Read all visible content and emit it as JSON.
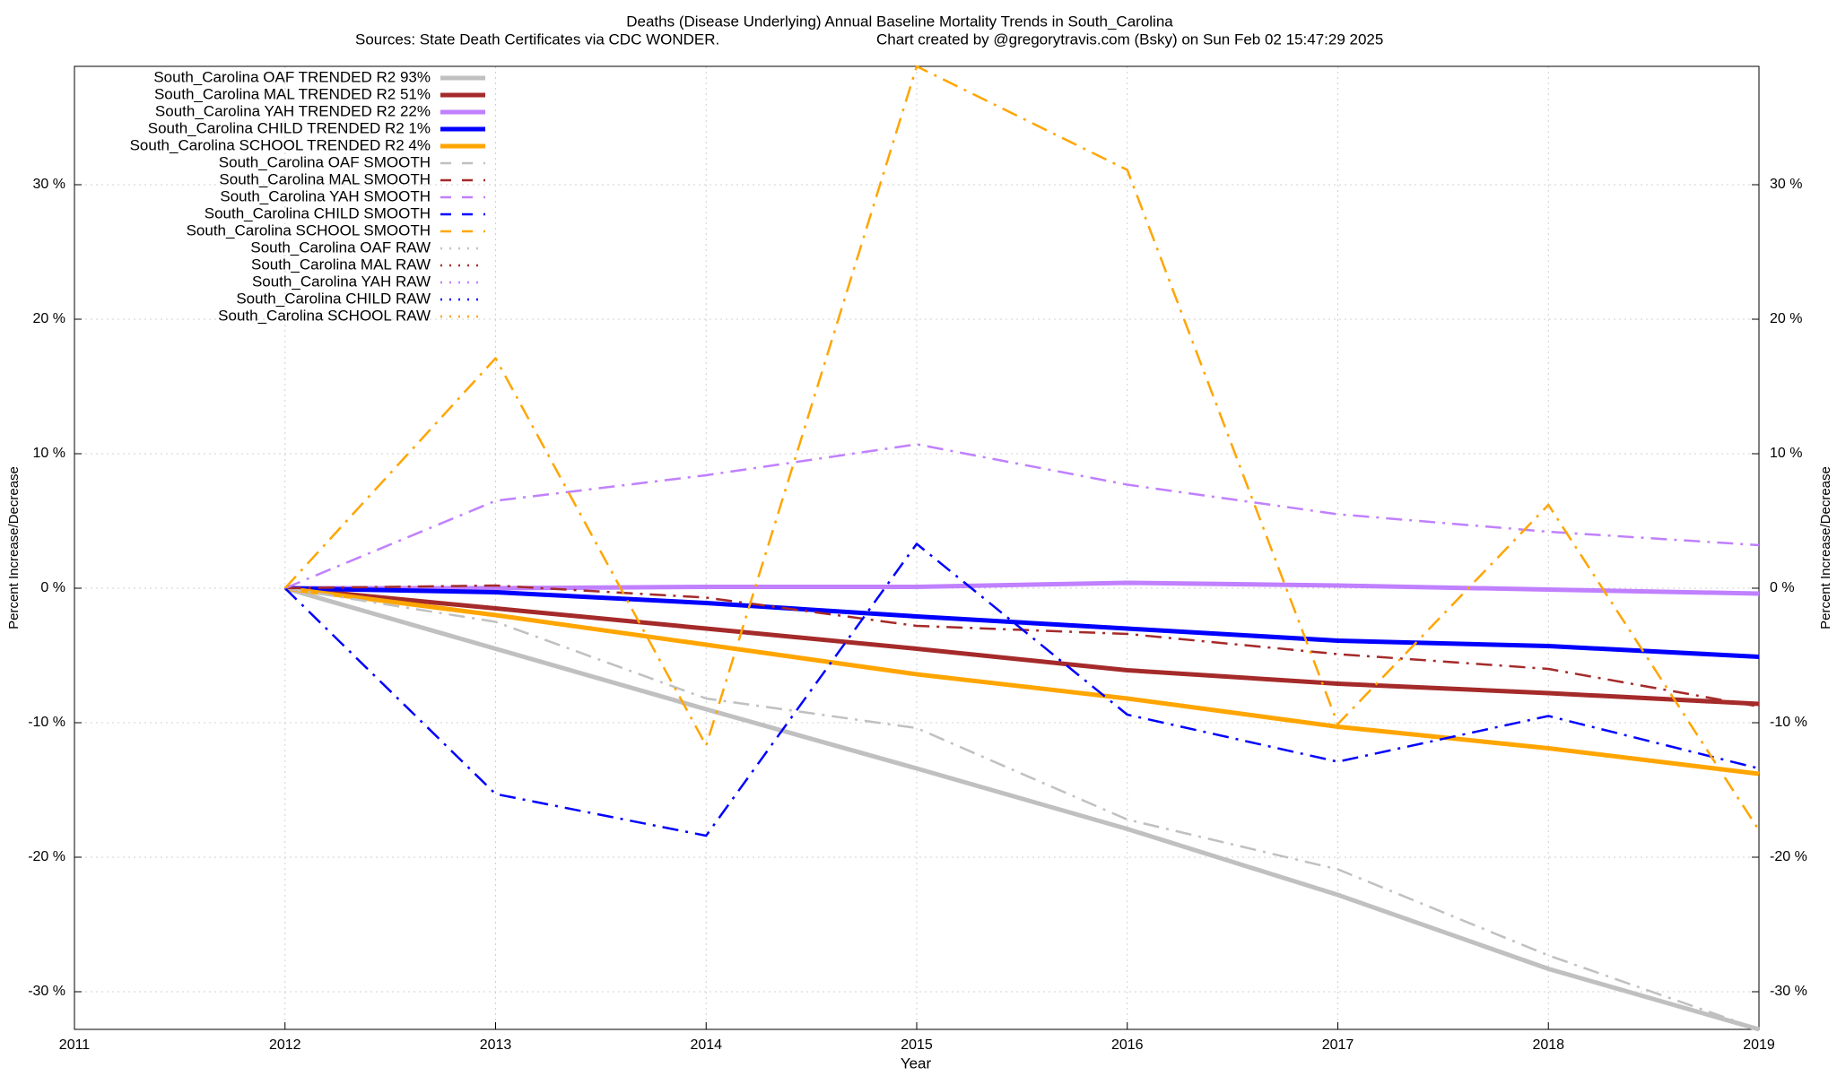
{
  "chart_data": {
    "type": "line",
    "title": "Deaths (Disease Underlying)  Annual Baseline Mortality Trends in South_Carolina",
    "subtitle": "Sources: State Death Certificates via CDC WONDER.",
    "credit": "Chart created by @gregorytravis.com (Bsky) on Sun Feb 02 15:47:29 2025",
    "xlabel": "Year",
    "ylabel": "Percent Increase/Decrease",
    "y2label": "Percent Increase/Decrease",
    "x": [
      2012,
      2013,
      2014,
      2015,
      2016,
      2017,
      2018,
      2019
    ],
    "xlim": [
      2011,
      2019
    ],
    "xticks": [
      2011,
      2012,
      2013,
      2014,
      2015,
      2016,
      2017,
      2018,
      2019
    ],
    "ylim": [
      -32.8,
      38.8
    ],
    "yticks": [
      {
        "value": -30,
        "label": "-30 %"
      },
      {
        "value": -20,
        "label": "-20 %"
      },
      {
        "value": -10,
        "label": "-10 %"
      },
      {
        "value": 0,
        "label": "0 %"
      },
      {
        "value": 10,
        "label": "10 %"
      },
      {
        "value": 20,
        "label": "20 %"
      },
      {
        "value": 30,
        "label": "30 %"
      }
    ],
    "grid": true,
    "legend": "upper left",
    "series": [
      {
        "name": "South_Carolina OAF TRENDED R2  93%",
        "color": "#c0c0c0",
        "style": "solid",
        "values": [
          0,
          -4.5,
          -9,
          -13.4,
          -17.9,
          -22.8,
          -28.3,
          -32.8
        ]
      },
      {
        "name": "South_Carolina MAL TRENDED R2  51%",
        "color": "#a52a2a",
        "style": "solid",
        "values": [
          0,
          -1.5,
          -3,
          -4.5,
          -6.1,
          -7.1,
          -7.8,
          -8.6
        ]
      },
      {
        "name": "South_Carolina YAH TRENDED R2  22%",
        "color": "#c080ff",
        "style": "solid",
        "values": [
          0,
          0,
          0.1,
          0.1,
          0.4,
          0.2,
          -0.1,
          -0.4
        ]
      },
      {
        "name": "South_Carolina CHILD TRENDED R2   1%",
        "color": "#0000ff",
        "style": "solid",
        "values": [
          0,
          -0.3,
          -1.1,
          -2.1,
          -3.0,
          -3.9,
          -4.3,
          -5.1
        ]
      },
      {
        "name": "South_Carolina SCHOOL TRENDED R2   4%",
        "color": "#ffa500",
        "style": "solid",
        "values": [
          0,
          -2,
          -4.2,
          -6.4,
          -8.2,
          -10.3,
          -11.9,
          -13.8
        ]
      },
      {
        "name": "South_Carolina OAF SMOOTH",
        "color": "#c0c0c0",
        "style": "dashdot",
        "values": [
          0,
          -2.5,
          -8.2,
          -10.4,
          -17.2,
          -20.9,
          -27.3,
          -32.8
        ]
      },
      {
        "name": "South_Carolina MAL SMOOTH",
        "color": "#a52a2a",
        "style": "dashdot",
        "values": [
          0,
          0.2,
          -0.7,
          -2.8,
          -3.4,
          -4.9,
          -6.0,
          -8.8
        ]
      },
      {
        "name": "South_Carolina YAH SMOOTH",
        "color": "#c080ff",
        "style": "dashdot",
        "values": [
          0,
          6.5,
          8.4,
          10.7,
          7.7,
          5.5,
          4.2,
          3.2
        ]
      },
      {
        "name": "South_Carolina CHILD SMOOTH",
        "color": "#0000ff",
        "style": "dashdot",
        "values": [
          0,
          -15.3,
          -18.4,
          3.3,
          -9.4,
          -12.9,
          -9.5,
          -13.4
        ]
      },
      {
        "name": "South_Carolina SCHOOL SMOOTH",
        "color": "#ffa500",
        "style": "dashdot",
        "values": [
          0,
          17.1,
          -11.7,
          38.8,
          31.1,
          -10.1,
          6.2,
          -18.0
        ]
      },
      {
        "name": "South_Carolina OAF RAW",
        "color": "#c0c0c0",
        "style": "dot",
        "values": [
          null,
          null,
          null,
          null,
          null,
          null,
          null,
          null
        ]
      },
      {
        "name": "South_Carolina MAL RAW",
        "color": "#a52a2a",
        "style": "dot",
        "values": [
          null,
          null,
          null,
          null,
          null,
          null,
          null,
          null
        ]
      },
      {
        "name": "South_Carolina YAH RAW",
        "color": "#c080ff",
        "style": "dot",
        "values": [
          null,
          null,
          null,
          null,
          null,
          null,
          null,
          null
        ]
      },
      {
        "name": "South_Carolina CHILD RAW",
        "color": "#0000ff",
        "style": "dot",
        "values": [
          null,
          null,
          null,
          null,
          null,
          null,
          null,
          null
        ]
      },
      {
        "name": "South_Carolina SCHOOL RAW",
        "color": "#ffa500",
        "style": "dot",
        "values": [
          null,
          null,
          null,
          null,
          null,
          null,
          null,
          null
        ]
      }
    ]
  }
}
